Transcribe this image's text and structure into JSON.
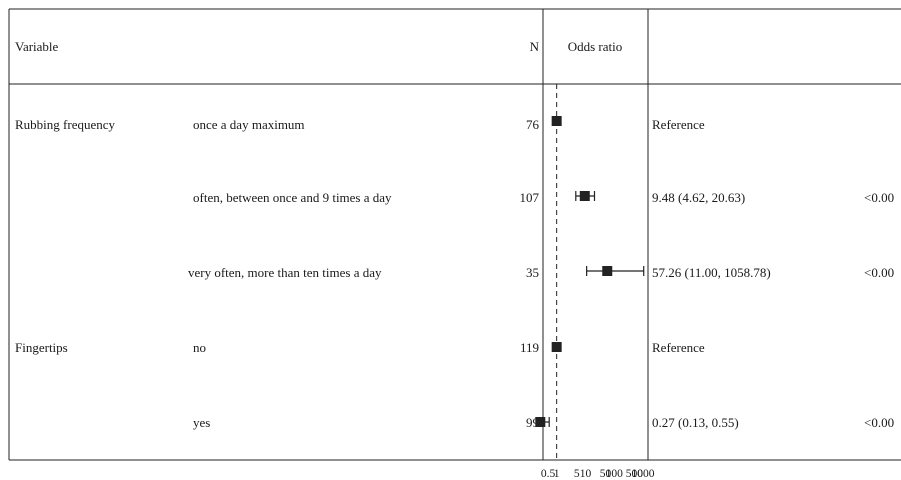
{
  "chart_data": {
    "type": "forest",
    "headers": {
      "variable": "Variable",
      "n": "N",
      "effect": "Odds ratio"
    },
    "reference_line": 1,
    "x_scale": "log",
    "xlim": [
      0.5,
      1000
    ],
    "x_ticks": [
      "0.5",
      "1",
      "5",
      "10",
      "50",
      "100",
      "500",
      "1000"
    ],
    "rows": [
      {
        "variable": "Rubbing frequency",
        "level": "once a day maximum",
        "n": "76",
        "estimate": 1,
        "ci": [
          1,
          1
        ],
        "label": "Reference",
        "p": ""
      },
      {
        "variable": "",
        "level": "often, between once and 9 times a day",
        "n": "107",
        "estimate": 9.48,
        "ci": [
          4.62,
          20.63
        ],
        "label": "9.48 (4.62, 20.63)",
        "p": "<0.00"
      },
      {
        "variable": "",
        "level": "very often, more than ten times a day",
        "n": "35",
        "estimate": 57.26,
        "ci": [
          11.0,
          1058.78
        ],
        "label": "57.26 (11.00, 1058.78)",
        "p": "<0.00"
      },
      {
        "variable": "Fingertips",
        "level": "no",
        "n": "119",
        "estimate": 1,
        "ci": [
          1,
          1
        ],
        "label": "Reference",
        "p": ""
      },
      {
        "variable": "",
        "level": "yes",
        "n": "99",
        "estimate": 0.27,
        "ci": [
          0.13,
          0.55
        ],
        "label": "0.27 (0.13, 0.55)",
        "p": "<0.00"
      }
    ]
  }
}
